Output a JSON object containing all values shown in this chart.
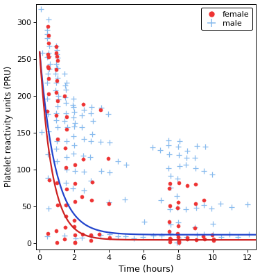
{
  "title": "",
  "xlabel": "Time (hours)",
  "ylabel": "Platelet reactivity units (PRU)",
  "xlim": [
    -0.2,
    12.5
  ],
  "ylim": [
    -8,
    325
  ],
  "xticks": [
    0,
    2,
    4,
    6,
    8,
    10,
    12
  ],
  "yticks": [
    0,
    50,
    100,
    150,
    200,
    250,
    300
  ],
  "female_color": "#EE3333",
  "male_color": "#88BBEE",
  "curve_female_color": "#CC2222",
  "curve_male_color": "#2244CC",
  "female_x": [
    0.5,
    0.5,
    0.5,
    0.5,
    0.5,
    0.5,
    0.5,
    0.5,
    0.5,
    0.5,
    0.5,
    0.5,
    1.0,
    1.0,
    1.0,
    1.0,
    1.0,
    1.0,
    1.0,
    1.0,
    1.0,
    1.0,
    1.0,
    1.0,
    1.0,
    1.0,
    1.5,
    1.5,
    1.5,
    1.5,
    1.5,
    1.5,
    1.5,
    1.5,
    1.5,
    1.5,
    2.0,
    2.0,
    2.0,
    2.0,
    2.0,
    2.0,
    2.0,
    2.0,
    2.5,
    2.5,
    2.5,
    2.5,
    3.0,
    3.0,
    3.0,
    3.0,
    3.5,
    3.5,
    4.0,
    4.0,
    4.0,
    7.5,
    7.5,
    7.5,
    7.5,
    7.5,
    7.5,
    7.5,
    7.5,
    8.0,
    8.0,
    8.0,
    8.0,
    8.0,
    8.0,
    8.0,
    8.0,
    8.0,
    8.5,
    8.5,
    8.5,
    9.0,
    9.0,
    9.0,
    9.0,
    9.5,
    9.5,
    9.5,
    10.0,
    10.0,
    10.0
  ],
  "female_y": [
    295,
    280,
    270,
    260,
    250,
    240,
    235,
    225,
    200,
    180,
    90,
    10,
    270,
    260,
    250,
    245,
    235,
    220,
    205,
    195,
    175,
    140,
    80,
    50,
    15,
    5,
    200,
    175,
    155,
    130,
    100,
    75,
    55,
    40,
    20,
    5,
    110,
    85,
    55,
    35,
    20,
    10,
    5,
    5,
    185,
    115,
    65,
    10,
    80,
    55,
    10,
    5,
    185,
    10,
    115,
    55,
    5,
    85,
    75,
    55,
    30,
    20,
    10,
    5,
    5,
    80,
    55,
    45,
    25,
    15,
    10,
    5,
    5,
    5,
    75,
    10,
    5,
    80,
    50,
    25,
    5,
    55,
    10,
    5,
    10,
    5,
    5
  ],
  "male_x": [
    0.08,
    0.08,
    0.08,
    0.5,
    0.5,
    0.5,
    0.5,
    0.5,
    0.5,
    0.5,
    0.5,
    0.5,
    0.5,
    0.5,
    0.5,
    0.5,
    0.5,
    0.5,
    0.5,
    0.5,
    0.5,
    0.5,
    1.0,
    1.0,
    1.0,
    1.0,
    1.0,
    1.0,
    1.0,
    1.0,
    1.0,
    1.0,
    1.0,
    1.0,
    1.0,
    1.0,
    1.0,
    1.0,
    1.0,
    1.0,
    1.0,
    1.0,
    1.5,
    1.5,
    1.5,
    1.5,
    1.5,
    1.5,
    1.5,
    1.5,
    1.5,
    1.5,
    1.5,
    1.5,
    1.5,
    1.5,
    1.5,
    2.0,
    2.0,
    2.0,
    2.0,
    2.0,
    2.0,
    2.0,
    2.0,
    2.0,
    2.0,
    2.0,
    2.0,
    2.0,
    2.5,
    2.5,
    2.5,
    2.5,
    2.5,
    2.5,
    2.5,
    2.5,
    3.0,
    3.0,
    3.0,
    3.0,
    3.0,
    3.0,
    3.0,
    3.0,
    3.5,
    3.5,
    3.5,
    3.5,
    4.0,
    4.0,
    4.0,
    4.0,
    4.0,
    4.5,
    4.5,
    5.0,
    5.0,
    5.0,
    5.5,
    6.0,
    6.0,
    6.5,
    6.5,
    7.0,
    7.0,
    7.0,
    7.5,
    7.5,
    7.5,
    7.5,
    7.5,
    7.5,
    7.5,
    7.5,
    7.5,
    7.5,
    8.0,
    8.0,
    8.0,
    8.0,
    8.0,
    8.0,
    8.0,
    8.0,
    8.0,
    8.0,
    8.0,
    8.5,
    8.5,
    8.5,
    8.5,
    8.5,
    9.0,
    9.0,
    9.0,
    9.0,
    9.0,
    9.0,
    9.5,
    9.5,
    9.5,
    9.5,
    10.0,
    10.0,
    10.0,
    10.0,
    10.5,
    10.5,
    11.0,
    11.0,
    11.5,
    12.0,
    12.0
  ],
  "male_y": [
    315,
    260,
    155,
    300,
    290,
    280,
    275,
    265,
    260,
    255,
    250,
    245,
    240,
    230,
    215,
    195,
    175,
    155,
    120,
    85,
    50,
    10,
    265,
    260,
    255,
    250,
    245,
    240,
    235,
    228,
    222,
    215,
    208,
    200,
    193,
    185,
    175,
    165,
    155,
    140,
    130,
    115,
    230,
    222,
    215,
    208,
    200,
    190,
    180,
    170,
    155,
    140,
    120,
    100,
    80,
    55,
    10,
    200,
    192,
    185,
    178,
    170,
    162,
    155,
    145,
    135,
    120,
    100,
    75,
    10,
    185,
    170,
    155,
    140,
    120,
    100,
    75,
    10,
    185,
    175,
    165,
    150,
    135,
    115,
    85,
    10,
    185,
    140,
    100,
    10,
    180,
    140,
    100,
    60,
    10,
    110,
    10,
    110,
    60,
    10,
    10,
    30,
    10,
    130,
    10,
    130,
    60,
    10,
    140,
    130,
    120,
    105,
    95,
    75,
    50,
    25,
    10,
    5,
    140,
    130,
    120,
    105,
    85,
    65,
    45,
    25,
    10,
    5,
    5,
    130,
    120,
    105,
    50,
    10,
    130,
    120,
    100,
    50,
    25,
    10,
    130,
    95,
    50,
    10,
    95,
    50,
    25,
    10,
    50,
    10,
    50,
    10,
    10,
    50,
    10
  ],
  "curve_female_a": 255,
  "curve_female_b": 1.4,
  "curve_female_c": 5,
  "curve_male_a": 248,
  "curve_male_b": 1.1,
  "curve_male_c": 12,
  "legend_female_label": "female",
  "legend_male_label": "male",
  "bg_color": "#FFFFFF",
  "panel_bg": "#FFFFFF"
}
